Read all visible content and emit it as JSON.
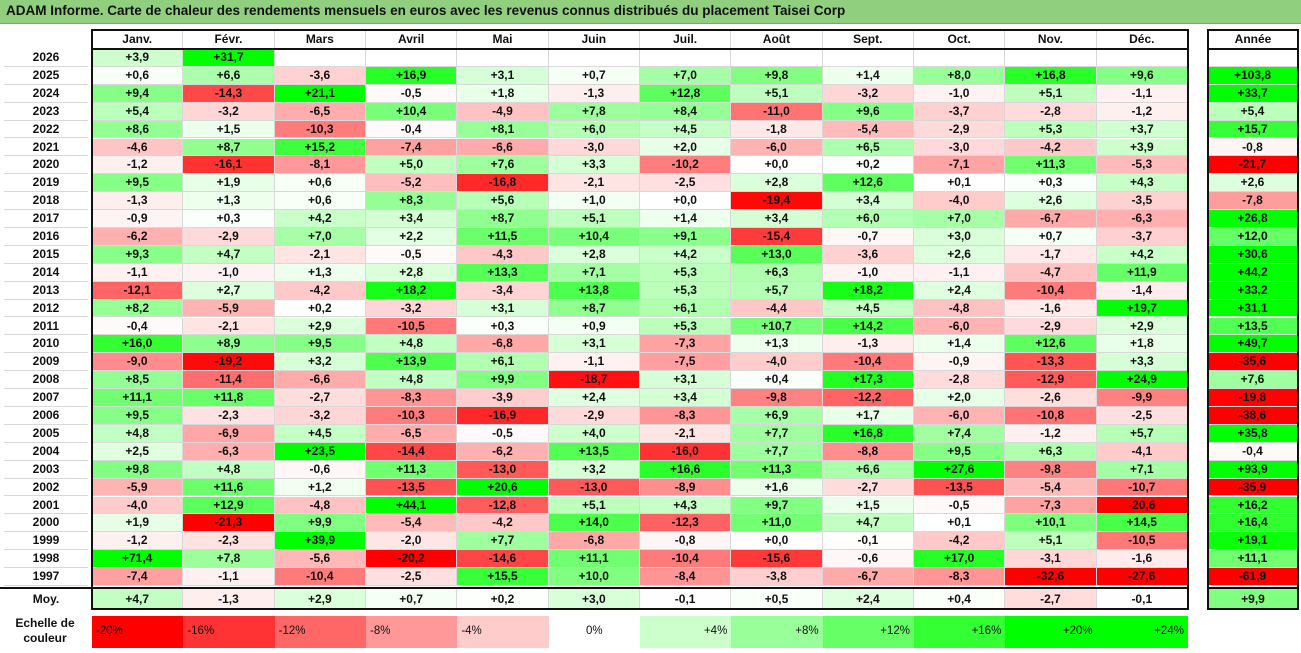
{
  "title": "ADAM Informe. Carte de chaleur des rendements mensuels en euros avec les revenus connus distribués du placement Taisei Corp",
  "chart_data": {
    "type": "heatmap",
    "months": [
      "Janv.",
      "Févr.",
      "Mars",
      "Avril",
      "Mai",
      "Juin",
      "Juil.",
      "Août",
      "Sept.",
      "Oct.",
      "Nov.",
      "Déc."
    ],
    "year_column_label": "Année",
    "rows": [
      {
        "year": "2026",
        "values": [
          "+3,9",
          "+31,7",
          "",
          "",
          "",
          "",
          "",
          "",
          "",
          "",
          "",
          ""
        ],
        "annual": ""
      },
      {
        "year": "2025",
        "values": [
          "+0,6",
          "+6,6",
          "-3,6",
          "+16,9",
          "+3,1",
          "+0,7",
          "+7,0",
          "+9,8",
          "+1,4",
          "+8,0",
          "+16,8",
          "+9,6"
        ],
        "annual": "+103,8"
      },
      {
        "year": "2024",
        "values": [
          "+9,4",
          "-14,3",
          "+21,1",
          "-0,5",
          "+1,8",
          "-1,3",
          "+12,8",
          "+5,1",
          "-3,2",
          "-1,0",
          "+5,1",
          "-1,1"
        ],
        "annual": "+33,7"
      },
      {
        "year": "2023",
        "values": [
          "+5,4",
          "-3,2",
          "-6,5",
          "+10,4",
          "-4,9",
          "+7,8",
          "+8,4",
          "-11,0",
          "+9,6",
          "-3,7",
          "-2,8",
          "-1,2"
        ],
        "annual": "+5,4"
      },
      {
        "year": "2022",
        "values": [
          "+8,6",
          "+1,5",
          "-10,3",
          "-0,4",
          "+8,1",
          "+6,0",
          "+4,5",
          "-1,8",
          "-5,4",
          "-2,9",
          "+5,3",
          "+3,7"
        ],
        "annual": "+15,7"
      },
      {
        "year": "2021",
        "values": [
          "-4,6",
          "+8,7",
          "+15,2",
          "-7,4",
          "-6,6",
          "-3,0",
          "+2,0",
          "-6,0",
          "+6,5",
          "-3,0",
          "-4,2",
          "+3,9"
        ],
        "annual": "-0,8"
      },
      {
        "year": "2020",
        "values": [
          "-1,2",
          "-16,1",
          "-8,1",
          "+5,0",
          "+7,6",
          "+3,3",
          "-10,2",
          "+0,0",
          "+0,2",
          "-7,1",
          "+11,3",
          "-5,3"
        ],
        "annual": "-21,7"
      },
      {
        "year": "2019",
        "values": [
          "+9,5",
          "+1,9",
          "+0,6",
          "-5,2",
          "-16,8",
          "-2,1",
          "-2,5",
          "+2,8",
          "+12,6",
          "+0,1",
          "+0,3",
          "+4,3"
        ],
        "annual": "+2,6"
      },
      {
        "year": "2018",
        "values": [
          "-1,3",
          "+1,3",
          "+0,6",
          "+8,3",
          "+5,6",
          "+1,0",
          "+0,0",
          "-19,4",
          "+3,4",
          "-4,0",
          "+2,6",
          "-3,5"
        ],
        "annual": "-7,8"
      },
      {
        "year": "2017",
        "values": [
          "-0,9",
          "+0,3",
          "+4,2",
          "+3,4",
          "+8,7",
          "+5,1",
          "+1,4",
          "+3,4",
          "+6,0",
          "+7,0",
          "-6,7",
          "-6,3"
        ],
        "annual": "+26,8"
      },
      {
        "year": "2016",
        "values": [
          "-6,2",
          "-2,9",
          "+7,0",
          "+2,2",
          "+11,5",
          "+10,4",
          "+9,1",
          "-15,4",
          "-0,7",
          "+3,0",
          "+0,7",
          "-3,7"
        ],
        "annual": "+12,0"
      },
      {
        "year": "2015",
        "values": [
          "+9,3",
          "+4,7",
          "-2,1",
          "-0,5",
          "-4,3",
          "+2,8",
          "+4,2",
          "+13,0",
          "-3,6",
          "+2,6",
          "-1,7",
          "+4,2"
        ],
        "annual": "+30,6"
      },
      {
        "year": "2014",
        "values": [
          "-1,1",
          "-1,0",
          "+1,3",
          "+2,8",
          "+13,3",
          "+7,1",
          "+5,3",
          "+6,3",
          "-1,0",
          "-1,1",
          "-4,7",
          "+11,9"
        ],
        "annual": "+44,2"
      },
      {
        "year": "2013",
        "values": [
          "-12,1",
          "+2,7",
          "-4,2",
          "+18,2",
          "-3,4",
          "+13,8",
          "+5,3",
          "+5,7",
          "+18,2",
          "+2,4",
          "-10,4",
          "-1,4"
        ],
        "annual": "+33,2"
      },
      {
        "year": "2012",
        "values": [
          "+8,2",
          "-5,9",
          "+0,2",
          "-3,2",
          "+3,1",
          "+8,7",
          "+6,1",
          "-4,4",
          "+4,5",
          "-4,8",
          "-1,6",
          "+19,7"
        ],
        "annual": "+31,1"
      },
      {
        "year": "2011",
        "values": [
          "-0,4",
          "-2,1",
          "+2,9",
          "-10,5",
          "+0,3",
          "+0,9",
          "+5,3",
          "+10,7",
          "+14,2",
          "-6,0",
          "-2,9",
          "+2,9"
        ],
        "annual": "+13,5"
      },
      {
        "year": "2010",
        "values": [
          "+16,0",
          "+8,9",
          "+9,5",
          "+4,8",
          "-6,8",
          "+3,1",
          "-7,3",
          "+1,3",
          "-1,3",
          "+1,4",
          "+12,6",
          "+1,8"
        ],
        "annual": "+49,7"
      },
      {
        "year": "2009",
        "values": [
          "-9,0",
          "-19,2",
          "+3,2",
          "+13,9",
          "+6,1",
          "-1,1",
          "-7,5",
          "-4,0",
          "-10,4",
          "-0,9",
          "-13,3",
          "+3,3"
        ],
        "annual": "-35,6"
      },
      {
        "year": "2008",
        "values": [
          "+8,5",
          "-11,4",
          "-6,6",
          "+4,8",
          "+9,9",
          "-18,7",
          "+3,1",
          "+0,4",
          "+17,3",
          "-2,8",
          "-12,9",
          "+24,9"
        ],
        "annual": "+7,6"
      },
      {
        "year": "2007",
        "values": [
          "+11,1",
          "+11,8",
          "-2,7",
          "-8,3",
          "-3,9",
          "+2,4",
          "+3,4",
          "-9,8",
          "-12,2",
          "+2,0",
          "-2,6",
          "-9,9"
        ],
        "annual": "-19,8"
      },
      {
        "year": "2006",
        "values": [
          "+9,5",
          "-2,3",
          "-3,2",
          "-10,3",
          "-16,9",
          "-2,9",
          "-8,3",
          "+6,9",
          "+1,7",
          "-6,0",
          "-10,8",
          "-2,5"
        ],
        "annual": "-38,6"
      },
      {
        "year": "2005",
        "values": [
          "+4,8",
          "-6,9",
          "+4,5",
          "-6,5",
          "-0,5",
          "+4,0",
          "-2,1",
          "+7,7",
          "+16,8",
          "+7,4",
          "-1,2",
          "+5,7"
        ],
        "annual": "+35,8"
      },
      {
        "year": "2004",
        "values": [
          "+2,5",
          "-6,3",
          "+23,5",
          "-14,4",
          "-6,2",
          "+13,5",
          "-16,0",
          "+7,7",
          "-8,8",
          "+9,5",
          "+6,3",
          "-4,1"
        ],
        "annual": "-0,4"
      },
      {
        "year": "2003",
        "values": [
          "+9,8",
          "+4,8",
          "-0,6",
          "+11,3",
          "-13,0",
          "+3,2",
          "+16,6",
          "+11,3",
          "+6,6",
          "+27,6",
          "-9,8",
          "+7,1"
        ],
        "annual": "+93,9"
      },
      {
        "year": "2002",
        "values": [
          "-5,9",
          "+11,6",
          "+1,2",
          "-13,5",
          "+20,6",
          "-13,0",
          "-8,9",
          "+1,6",
          "-2,7",
          "-13,5",
          "-5,4",
          "-10,7"
        ],
        "annual": "-35,9"
      },
      {
        "year": "2001",
        "values": [
          "-4,0",
          "+12,9",
          "-4,8",
          "+44,1",
          "-12,8",
          "+5,1",
          "+4,3",
          "+9,7",
          "+1,5",
          "-0,5",
          "-7,3",
          "-20,6"
        ],
        "annual": "+16,2"
      },
      {
        "year": "2000",
        "values": [
          "+1,9",
          "-21,3",
          "+9,9",
          "-5,4",
          "-4,2",
          "+14,0",
          "-12,3",
          "+11,0",
          "+4,7",
          "+0,1",
          "+10,1",
          "+14,5"
        ],
        "annual": "+16,4"
      },
      {
        "year": "1999",
        "values": [
          "-1,2",
          "-2,3",
          "+39,9",
          "-2,0",
          "+7,7",
          "-6,8",
          "-0,8",
          "+0,0",
          "-0,1",
          "-4,2",
          "+5,1",
          "-10,5"
        ],
        "annual": "+19,1"
      },
      {
        "year": "1998",
        "values": [
          "+71,4",
          "+7,8",
          "-5,6",
          "-20,2",
          "-14,6",
          "+11,1",
          "-10,4",
          "-15,6",
          "-0,6",
          "+17,0",
          "-3,1",
          "-1,6"
        ],
        "annual": "+11,1"
      },
      {
        "year": "1997",
        "values": [
          "-7,4",
          "-1,1",
          "-10,4",
          "-2,5",
          "+15,5",
          "+10,0",
          "-8,4",
          "-3,8",
          "-6,7",
          "-8,3",
          "-32,6",
          "-27,6"
        ],
        "annual": "-61,9"
      }
    ],
    "average": {
      "label": "Moy.",
      "values": [
        "+4,7",
        "-1,3",
        "+2,9",
        "+0,7",
        "+0,2",
        "+3,0",
        "-0,1",
        "+0,5",
        "+2,4",
        "+0,4",
        "-2,7",
        "-0,1"
      ],
      "annual": "+9,9"
    },
    "color_scale": {
      "label": "Echelle de couleur",
      "steps": [
        "-20%",
        "-16%",
        "-12%",
        "-8%",
        "-4%",
        "0%",
        "+4%",
        "+8%",
        "+12%",
        "+16%",
        "+20%",
        "+24%"
      ],
      "negative_color": "#ff0000",
      "positive_color": "#00ff00",
      "neutral_color": "#ffffff"
    }
  }
}
